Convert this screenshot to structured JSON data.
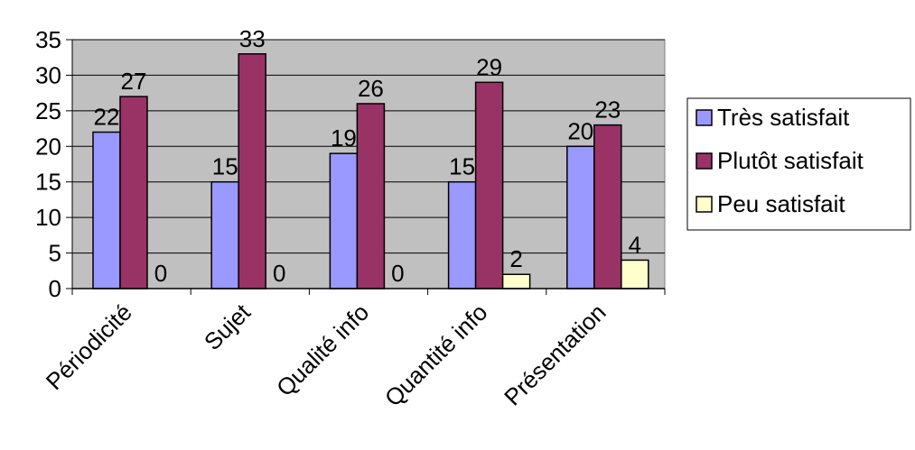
{
  "chart_data": {
    "type": "bar",
    "categories": [
      "Périodicité",
      "Sujet",
      "Qualité info",
      "Quantité info",
      "Présentation"
    ],
    "series": [
      {
        "name": "Très satisfait",
        "values": [
          22,
          15,
          19,
          15,
          20
        ],
        "color": "#9999ff"
      },
      {
        "name": "Plutôt satisfait",
        "values": [
          27,
          33,
          26,
          29,
          23
        ],
        "color": "#993366"
      },
      {
        "name": "Peu satisfait",
        "values": [
          0,
          0,
          0,
          2,
          4
        ],
        "color": "#ffffcc"
      }
    ],
    "ylim": [
      0,
      35
    ],
    "yticks": [
      0,
      5,
      10,
      15,
      20,
      25,
      30,
      35
    ],
    "plot_background": "#c0c0c0",
    "grid": true,
    "legend_position": "right",
    "data_labels": true
  }
}
